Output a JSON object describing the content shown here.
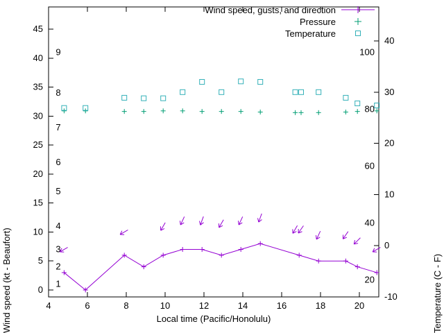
{
  "colors": {
    "wind": "#9400d3",
    "pressure": "#009e73",
    "temperature": "#33b0b8",
    "axis": "#000000",
    "background": "#ffffff"
  },
  "legend": {
    "items": [
      {
        "label": "Wind speed, gusts, and direction"
      },
      {
        "label": "Pressure"
      },
      {
        "label": "Temperature"
      }
    ]
  },
  "axes": {
    "x": {
      "label": "Local time (Pacific/Honolulu)",
      "min": 4,
      "max": 21,
      "ticks": [
        4,
        6,
        8,
        10,
        12,
        14,
        16,
        18,
        20
      ]
    },
    "y_left": {
      "label": "Wind speed (kt - Beaufort)",
      "min": 0,
      "max": 45,
      "ticks": [
        0,
        5,
        10,
        15,
        20,
        25,
        30,
        35,
        40,
        45
      ],
      "beaufort_scale_labels": [
        {
          "label": "1",
          "kt": 1
        },
        {
          "label": "2",
          "kt": 4
        },
        {
          "label": "3",
          "kt": 7
        },
        {
          "label": "4",
          "kt": 11
        },
        {
          "label": "5",
          "kt": 17
        },
        {
          "label": "6",
          "kt": 22
        },
        {
          "label": "7",
          "kt": 28
        },
        {
          "label": "8",
          "kt": 34
        },
        {
          "label": "9",
          "kt": 41
        }
      ]
    },
    "y_right": {
      "label": "Temperature (C - F)",
      "min": -10,
      "max": 40,
      "ticks_celsius": [
        -10,
        0,
        10,
        20,
        30,
        40
      ],
      "fahrenheit_scale_labels": [
        {
          "label": "20",
          "f": 20
        },
        {
          "label": "40",
          "f": 40
        },
        {
          "label": "60",
          "f": 60
        },
        {
          "label": "80",
          "f": 80
        },
        {
          "label": "100",
          "f": 100
        }
      ]
    }
  },
  "chart_data": {
    "type": "line",
    "x_unit": "hour, local time (Pacific/Honolulu)",
    "series": [
      {
        "name": "Wind speed",
        "unit": "kt",
        "axis": "left",
        "marker": "plus",
        "line": true,
        "color_key": "wind",
        "x": [
          4.8,
          5.9,
          7.9,
          8.9,
          9.9,
          10.9,
          11.9,
          12.9,
          13.9,
          14.9,
          16.9,
          17.9,
          19.3,
          19.9,
          20.9
        ],
        "y": [
          3,
          0,
          6,
          4,
          6,
          7,
          7,
          6,
          7,
          8,
          6,
          5,
          5,
          4,
          3
        ]
      },
      {
        "name": "Wind gusts and direction (arrows plotted at gust speed, angle clockwise from east)",
        "unit": "kt",
        "axis": "left",
        "marker": "arrow",
        "color_key": "wind",
        "points": [
          {
            "x": 4.8,
            "y": 7,
            "angle_deg": 150
          },
          {
            "x": 7.9,
            "y": 10,
            "angle_deg": 150
          },
          {
            "x": 9.9,
            "y": 11,
            "angle_deg": 120
          },
          {
            "x": 10.9,
            "y": 12,
            "angle_deg": 115
          },
          {
            "x": 11.9,
            "y": 12,
            "angle_deg": 110
          },
          {
            "x": 12.9,
            "y": 11.5,
            "angle_deg": 120
          },
          {
            "x": 13.9,
            "y": 12,
            "angle_deg": 115
          },
          {
            "x": 14.9,
            "y": 12.5,
            "angle_deg": 110
          },
          {
            "x": 16.7,
            "y": 10.5,
            "angle_deg": 120
          },
          {
            "x": 17.0,
            "y": 10.5,
            "angle_deg": 125
          },
          {
            "x": 17.9,
            "y": 9.5,
            "angle_deg": 115
          },
          {
            "x": 19.3,
            "y": 9.5,
            "angle_deg": 125
          },
          {
            "x": 19.9,
            "y": 8.5,
            "angle_deg": 135
          },
          {
            "x": 20.9,
            "y": 7,
            "angle_deg": 150
          }
        ]
      },
      {
        "name": "Pressure",
        "axis": "left",
        "marker": "plus",
        "line": false,
        "color_key": "pressure",
        "x": [
          4.8,
          5.9,
          7.9,
          8.9,
          9.9,
          10.9,
          11.9,
          12.9,
          13.9,
          14.9,
          16.7,
          17.0,
          17.9,
          19.3,
          19.9,
          20.9
        ],
        "y": [
          30.9,
          30.9,
          30.8,
          30.8,
          30.9,
          30.9,
          30.8,
          30.8,
          30.8,
          30.7,
          30.6,
          30.6,
          30.6,
          30.7,
          30.8,
          30.9
        ]
      },
      {
        "name": "Temperature",
        "unit": "C",
        "axis": "right",
        "marker": "square",
        "line": false,
        "color_key": "temperature",
        "x": [
          4.8,
          5.9,
          7.9,
          8.9,
          9.9,
          10.9,
          11.9,
          12.9,
          13.9,
          14.9,
          16.7,
          17.0,
          17.9,
          19.3,
          19.9,
          20.9
        ],
        "y": [
          26.9,
          26.9,
          28.9,
          28.8,
          28.8,
          30.0,
          32.0,
          30.0,
          32.1,
          32.0,
          30.0,
          30.0,
          30.0,
          28.9,
          27.8,
          27.4
        ]
      }
    ]
  }
}
